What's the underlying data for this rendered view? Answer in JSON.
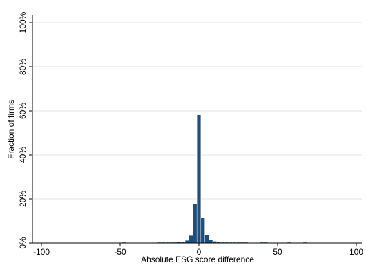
{
  "chart_data": {
    "type": "bar",
    "title": "",
    "xlabel": "Absolute ESG score difference",
    "ylabel": "Fraction of firms",
    "xlim": [
      -100,
      100
    ],
    "ylim": [
      0,
      1.0
    ],
    "x_ticks": [
      -100,
      -50,
      0,
      50,
      100
    ],
    "x_tick_labels": [
      "-100",
      "-50",
      "0",
      "50",
      "100"
    ],
    "y_ticks": [
      0,
      0.2,
      0.4,
      0.6,
      0.8,
      1.0
    ],
    "y_tick_labels": [
      "0%",
      "20%",
      "40%",
      "60%",
      "80%",
      "100%"
    ],
    "grid": "horizontal",
    "bin_width": 2.5,
    "bar_color": "#1f4e79",
    "bins": [
      {
        "x": -47.5,
        "value": 0.003
      },
      {
        "x": -25.0,
        "value": 0.002
      },
      {
        "x": -22.5,
        "value": 0.002
      },
      {
        "x": -20.0,
        "value": 0.002
      },
      {
        "x": -17.5,
        "value": 0.002
      },
      {
        "x": -15.0,
        "value": 0.003
      },
      {
        "x": -12.5,
        "value": 0.004
      },
      {
        "x": -10.0,
        "value": 0.006
      },
      {
        "x": -7.5,
        "value": 0.012
      },
      {
        "x": -5.0,
        "value": 0.034
      },
      {
        "x": -2.5,
        "value": 0.178
      },
      {
        "x": 0.0,
        "value": 0.582
      },
      {
        "x": 2.5,
        "value": 0.113
      },
      {
        "x": 5.0,
        "value": 0.036
      },
      {
        "x": 7.5,
        "value": 0.014
      },
      {
        "x": 10.0,
        "value": 0.008
      },
      {
        "x": 12.5,
        "value": 0.005
      },
      {
        "x": 15.0,
        "value": 0.003
      },
      {
        "x": 17.5,
        "value": 0.002
      },
      {
        "x": 20.0,
        "value": 0.002
      },
      {
        "x": 22.5,
        "value": 0.002
      },
      {
        "x": 25.0,
        "value": 0.002
      },
      {
        "x": 27.5,
        "value": 0.002
      },
      {
        "x": 30.0,
        "value": 0.002
      },
      {
        "x": 40.0,
        "value": 0.002
      },
      {
        "x": 42.5,
        "value": 0.002
      },
      {
        "x": 57.5,
        "value": 0.002
      },
      {
        "x": 67.5,
        "value": 0.002
      }
    ]
  }
}
